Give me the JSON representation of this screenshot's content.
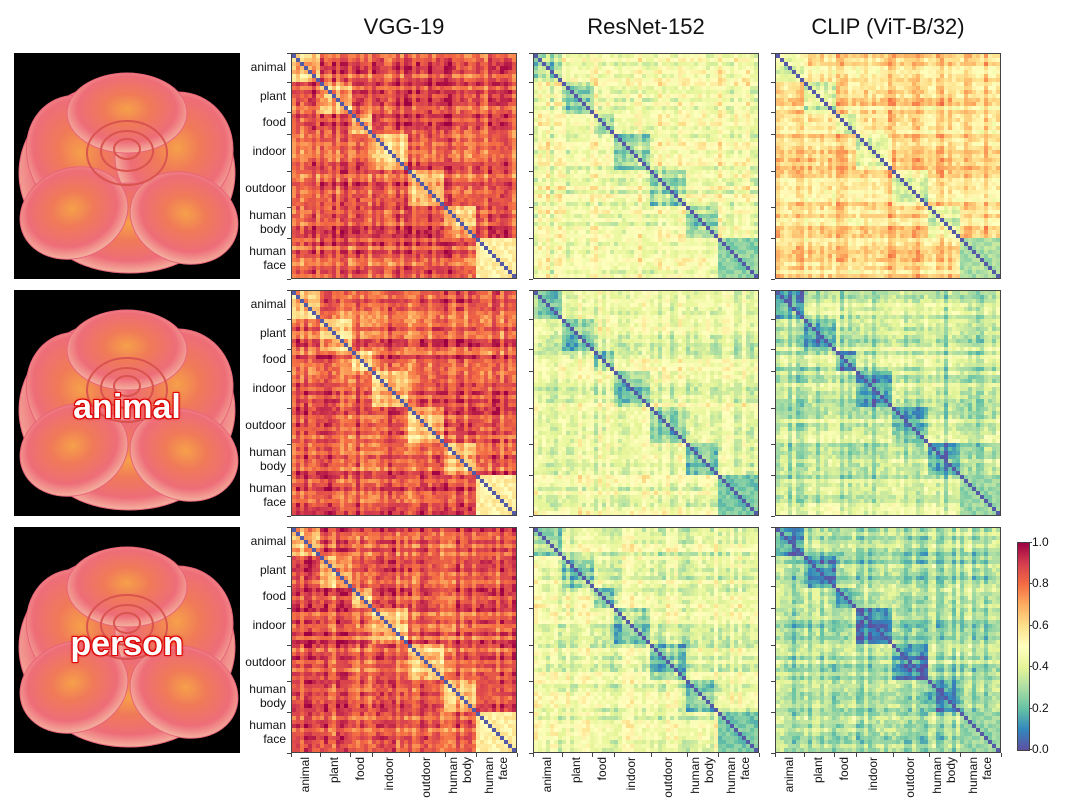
{
  "chart_data": {
    "type": "heatmap",
    "columns": [
      "VGG-19",
      "ResNet-152",
      "CLIP (ViT-B/32)"
    ],
    "rows": [
      {
        "image": "rose",
        "overlay_text": ""
      },
      {
        "image": "rose",
        "overlay_text": "animal"
      },
      {
        "image": "rose",
        "overlay_text": "person"
      }
    ],
    "y_category_labels": [
      {
        "lines": [
          "animal"
        ]
      },
      {
        "lines": [
          "plant"
        ]
      },
      {
        "lines": [
          "food"
        ]
      },
      {
        "lines": [
          "indoor"
        ]
      },
      {
        "lines": [
          "outdoor"
        ]
      },
      {
        "lines": [
          "human",
          "body"
        ]
      },
      {
        "lines": [
          "human",
          "face"
        ]
      }
    ],
    "x_category_labels": [
      {
        "lines": [
          "animal"
        ]
      },
      {
        "lines": [
          "plant"
        ]
      },
      {
        "lines": [
          "food"
        ]
      },
      {
        "lines": [
          "indoor"
        ]
      },
      {
        "lines": [
          "outdoor"
        ]
      },
      {
        "lines": [
          "human",
          "body"
        ]
      },
      {
        "lines": [
          "human",
          "face"
        ]
      }
    ],
    "category_fractions": [
      0.13,
      0.13,
      0.1,
      0.16,
      0.16,
      0.14,
      0.18
    ],
    "colorbar": {
      "min": 0.0,
      "max": 1.0,
      "ticks": [
        "1.0",
        "0.8",
        "0.6",
        "0.4",
        "0.2",
        "0.0"
      ],
      "colormap": "Spectral_r"
    },
    "panel_mean_levels": [
      [
        0.83,
        0.47,
        0.62
      ],
      [
        0.83,
        0.44,
        0.34
      ],
      [
        0.83,
        0.43,
        0.3
      ]
    ],
    "within_face_block_levels": [
      [
        0.55,
        0.25,
        0.3
      ],
      [
        0.55,
        0.22,
        0.27
      ],
      [
        0.55,
        0.22,
        0.27
      ]
    ]
  }
}
